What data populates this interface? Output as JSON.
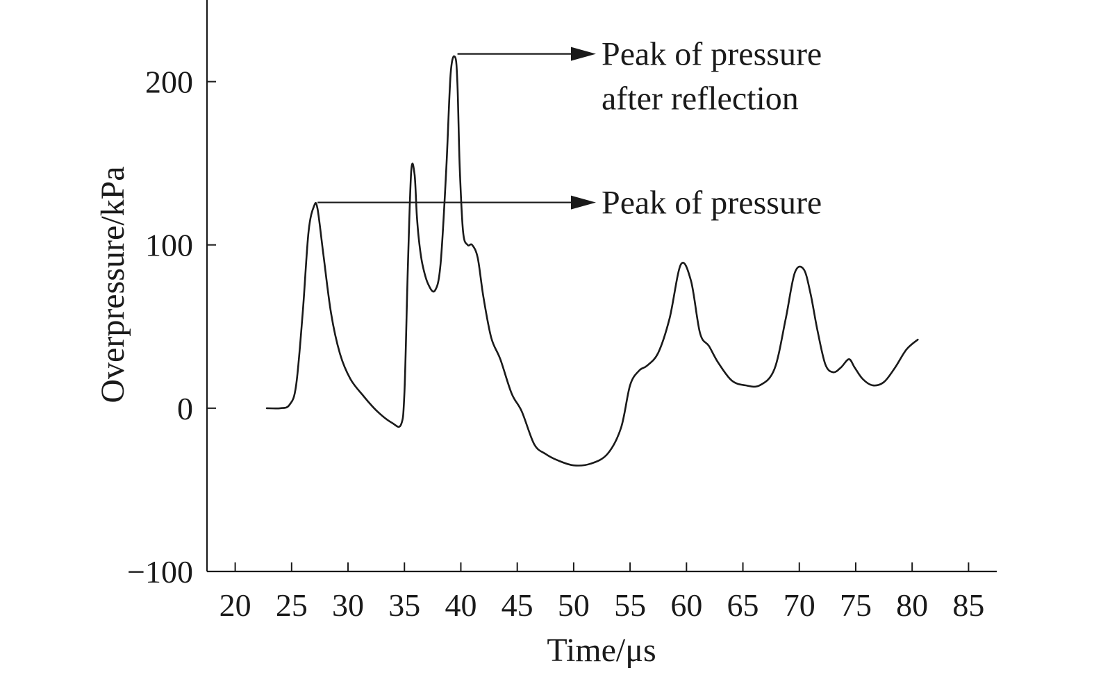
{
  "chart_data": {
    "type": "line",
    "title": "",
    "xlabel": "Time/μs",
    "ylabel": "Overpressure/kPa",
    "xlim": [
      17.5,
      87.5
    ],
    "ylim": [
      -100,
      250
    ],
    "x_ticks": [
      20,
      25,
      30,
      35,
      40,
      45,
      50,
      55,
      60,
      65,
      70,
      75,
      80,
      85
    ],
    "y_ticks": [
      -100,
      0,
      100,
      200
    ],
    "grid": false,
    "series": [
      {
        "x": [
          22.8,
          24.0,
          24.8,
          25.4,
          26.0,
          26.5,
          27.0,
          27.3,
          27.8,
          28.5,
          29.3,
          30.2,
          31.3,
          32.6,
          33.9,
          34.7,
          35.0,
          35.3,
          35.6,
          35.9,
          36.1,
          36.3,
          36.6,
          37.1,
          37.7,
          38.2,
          38.7,
          39.1,
          39.5,
          39.7,
          39.9,
          40.2,
          40.6,
          41.0,
          41.5,
          42.0,
          42.7,
          43.5,
          44.5,
          45.4,
          46.5,
          47.5,
          48.6,
          50.0,
          51.5,
          53.0,
          54.2,
          55.0,
          55.8,
          56.5,
          57.5,
          58.5,
          59.5,
          60.4,
          61.2,
          62.0,
          62.8,
          64.0,
          65.2,
          66.5,
          67.8,
          68.8,
          69.6,
          70.4,
          71.0,
          71.6,
          72.3,
          73.0,
          73.7,
          74.4,
          74.9,
          75.6,
          76.5,
          77.5,
          78.5,
          79.5,
          80.5
        ],
        "y": [
          0,
          0,
          2,
          14,
          60,
          108,
          124,
          122,
          95,
          58,
          33,
          18,
          8,
          -2,
          -9,
          -10,
          10,
          85,
          145,
          143,
          118,
          102,
          88,
          76,
          72,
          88,
          145,
          205,
          215,
          198,
          148,
          108,
          100,
          100,
          92,
          68,
          43,
          30,
          9,
          -2,
          -22,
          -28,
          -32,
          -35,
          -34,
          -28,
          -12,
          14,
          23,
          26,
          34,
          55,
          88,
          78,
          46,
          38,
          28,
          17,
          14,
          14,
          24,
          55,
          83,
          85,
          70,
          48,
          27,
          22,
          25,
          30,
          25,
          18,
          14,
          16,
          25,
          36,
          42
        ]
      }
    ],
    "annotations": [
      {
        "text": [
          "Peak of pressure",
          "after reflection"
        ],
        "x": 39.7,
        "y": 217
      },
      {
        "text": [
          "Peak of pressure"
        ],
        "x": 27.3,
        "y": 126
      }
    ]
  }
}
